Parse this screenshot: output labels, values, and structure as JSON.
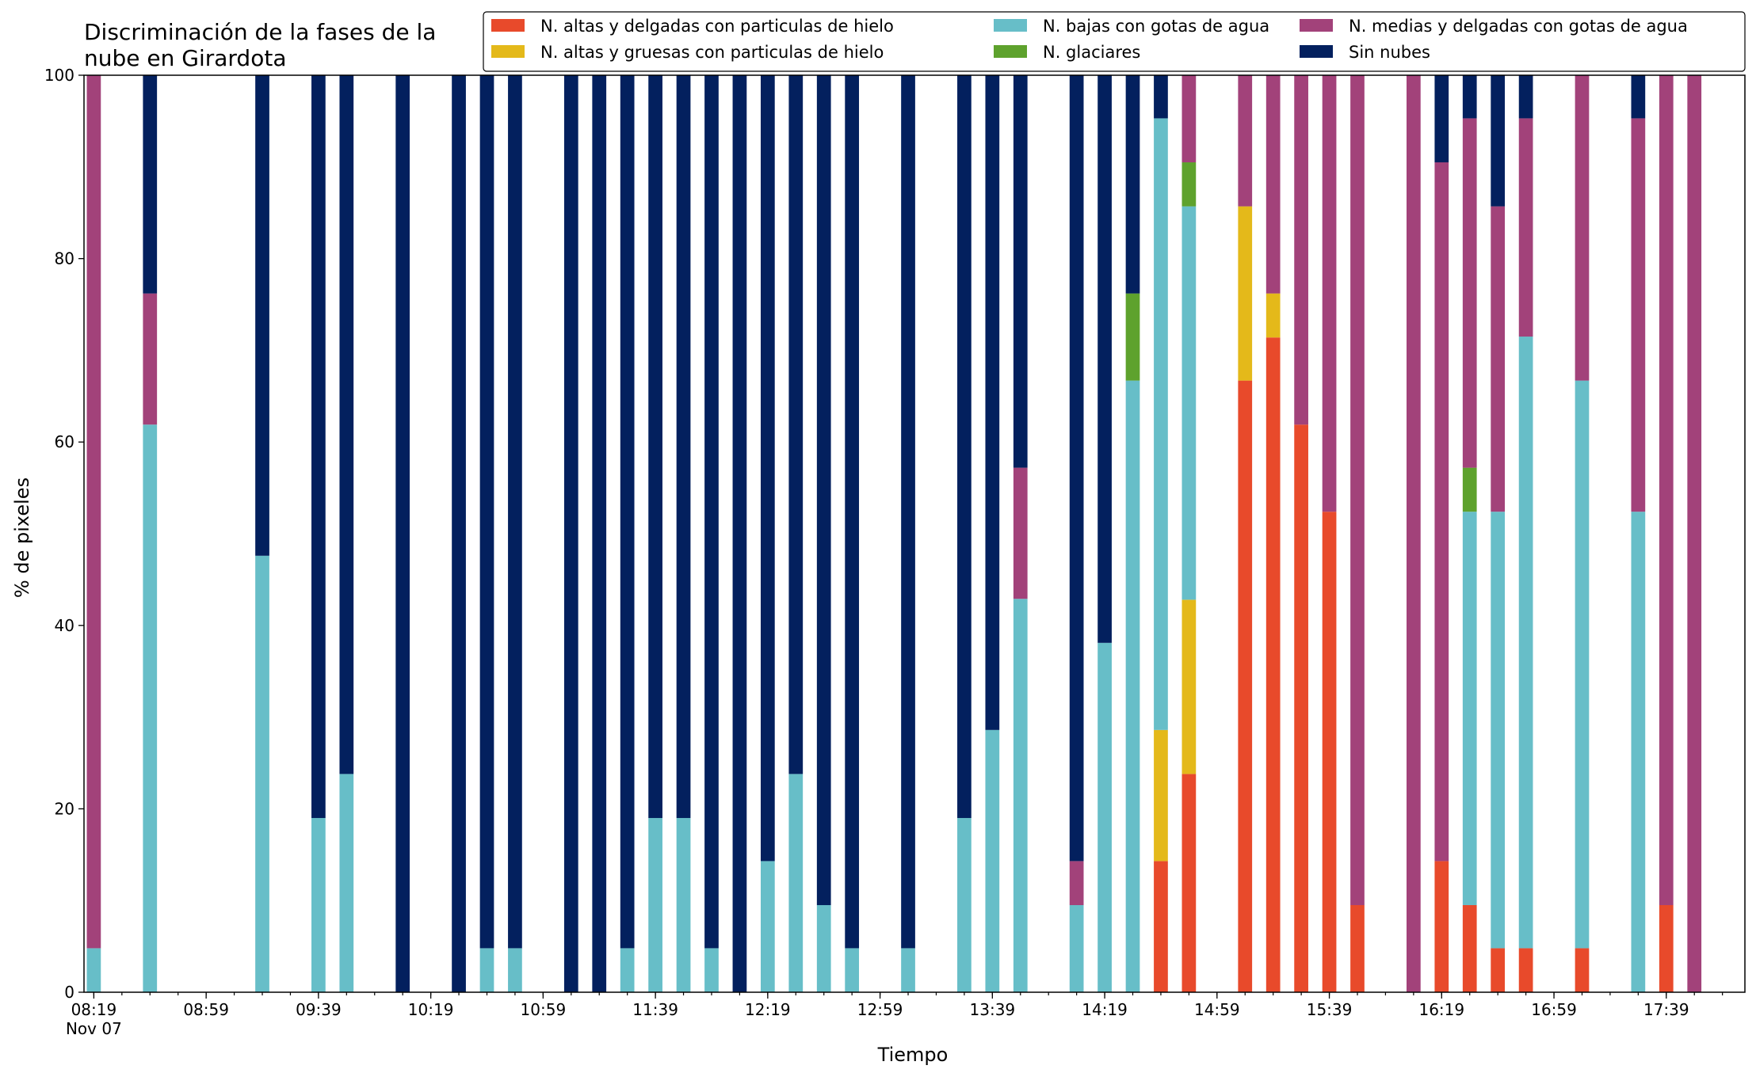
{
  "chart_data": {
    "type": "bar",
    "stacked": true,
    "title_lines": [
      "Discriminación de la fases de la",
      "nube en Girardota"
    ],
    "xlabel": "Tiempo",
    "ylabel": "% de pixeles",
    "ylim": [
      0,
      100
    ],
    "yticks": [
      0,
      20,
      40,
      60,
      80,
      100
    ],
    "xlim_minutes_since_0800": [
      15.5,
      607
    ],
    "x_unit": "minutes since 08:00, Nov 07",
    "xticks": [
      {
        "t": 19,
        "label": "08:19",
        "sublabel": "Nov 07"
      },
      {
        "t": 59,
        "label": "08:59"
      },
      {
        "t": 99,
        "label": "09:39"
      },
      {
        "t": 139,
        "label": "10:19"
      },
      {
        "t": 179,
        "label": "10:59"
      },
      {
        "t": 219,
        "label": "11:39"
      },
      {
        "t": 259,
        "label": "12:19"
      },
      {
        "t": 299,
        "label": "12:59"
      },
      {
        "t": 339,
        "label": "13:39"
      },
      {
        "t": 379,
        "label": "14:19"
      },
      {
        "t": 419,
        "label": "14:59"
      },
      {
        "t": 459,
        "label": "15:39"
      },
      {
        "t": 499,
        "label": "16:19"
      },
      {
        "t": 539,
        "label": "16:59"
      },
      {
        "t": 579,
        "label": "17:39"
      }
    ],
    "minor_tick_every_minutes": 10,
    "grid": false,
    "legend_position": "top-right",
    "legend_ncol": 3,
    "bar_width_minutes": 5,
    "series": [
      {
        "name": "N. altas y delgadas con particulas de hielo",
        "color": "#e84a2b"
      },
      {
        "name": "N. altas y gruesas con particulas de hielo",
        "color": "#e4b91a"
      },
      {
        "name": "N. bajas con gotas de agua",
        "color": "#67bec8"
      },
      {
        "name": "N. glaciares",
        "color": "#5ea22d"
      },
      {
        "name": "N. medias y delgadas con gotas de agua",
        "color": "#a2427a"
      },
      {
        "name": "Sin nubes",
        "color": "#03205e"
      }
    ],
    "bars": [
      {
        "t": 19,
        "values": [
          0,
          0,
          4.8,
          0,
          95.2,
          0
        ]
      },
      {
        "t": 39,
        "values": [
          0,
          0,
          61.9,
          0,
          14.3,
          23.8
        ]
      },
      {
        "t": 79,
        "values": [
          0,
          0,
          47.6,
          0,
          0,
          52.4
        ]
      },
      {
        "t": 99,
        "values": [
          0,
          0,
          19.0,
          0,
          0,
          81.0
        ]
      },
      {
        "t": 109,
        "values": [
          0,
          0,
          23.8,
          0,
          0,
          76.2
        ]
      },
      {
        "t": 129,
        "values": [
          0,
          0,
          0,
          0,
          0,
          100
        ]
      },
      {
        "t": 149,
        "values": [
          0,
          0,
          0,
          0,
          0,
          100
        ]
      },
      {
        "t": 159,
        "values": [
          0,
          0,
          4.8,
          0,
          0,
          95.2
        ]
      },
      {
        "t": 169,
        "values": [
          0,
          0,
          4.8,
          0,
          0,
          95.2
        ]
      },
      {
        "t": 189,
        "values": [
          0,
          0,
          0,
          0,
          0,
          100
        ]
      },
      {
        "t": 199,
        "values": [
          0,
          0,
          0,
          0,
          0,
          100
        ]
      },
      {
        "t": 209,
        "values": [
          0,
          0,
          4.8,
          0,
          0,
          95.2
        ]
      },
      {
        "t": 219,
        "values": [
          0,
          0,
          19.0,
          0,
          0,
          81.0
        ]
      },
      {
        "t": 229,
        "values": [
          0,
          0,
          19.0,
          0,
          0,
          81.0
        ]
      },
      {
        "t": 239,
        "values": [
          0,
          0,
          4.8,
          0,
          0,
          95.2
        ]
      },
      {
        "t": 249,
        "values": [
          0,
          0,
          0,
          0,
          0,
          100
        ]
      },
      {
        "t": 259,
        "values": [
          0,
          0,
          14.3,
          0,
          0,
          85.7
        ]
      },
      {
        "t": 269,
        "values": [
          0,
          0,
          23.8,
          0,
          0,
          76.2
        ]
      },
      {
        "t": 279,
        "values": [
          0,
          0,
          9.5,
          0,
          0,
          90.5
        ]
      },
      {
        "t": 289,
        "values": [
          0,
          0,
          4.8,
          0,
          0,
          95.2
        ]
      },
      {
        "t": 309,
        "values": [
          0,
          0,
          4.8,
          0,
          0,
          95.2
        ]
      },
      {
        "t": 329,
        "values": [
          0,
          0,
          19.0,
          0,
          0,
          81.0
        ]
      },
      {
        "t": 339,
        "values": [
          0,
          0,
          28.6,
          0,
          0,
          71.4
        ]
      },
      {
        "t": 349,
        "values": [
          0,
          0,
          42.9,
          0,
          14.3,
          42.8
        ]
      },
      {
        "t": 369,
        "values": [
          0,
          0,
          9.5,
          0,
          4.8,
          85.7
        ]
      },
      {
        "t": 379,
        "values": [
          0,
          0,
          38.1,
          0,
          0,
          61.9
        ]
      },
      {
        "t": 389,
        "values": [
          0,
          0,
          66.7,
          9.5,
          0,
          23.8
        ]
      },
      {
        "t": 399,
        "values": [
          14.3,
          14.3,
          66.7,
          0,
          0,
          4.7
        ]
      },
      {
        "t": 409,
        "values": [
          23.8,
          19.0,
          42.9,
          4.8,
          9.5,
          0
        ]
      },
      {
        "t": 429,
        "values": [
          66.7,
          19.0,
          0,
          0,
          14.3,
          0
        ]
      },
      {
        "t": 439,
        "values": [
          71.4,
          4.8,
          0,
          0,
          23.8,
          0
        ]
      },
      {
        "t": 449,
        "values": [
          61.9,
          0,
          0,
          0,
          38.1,
          0
        ]
      },
      {
        "t": 459,
        "values": [
          52.4,
          0,
          0,
          0,
          47.6,
          0
        ]
      },
      {
        "t": 469,
        "values": [
          9.5,
          0,
          0,
          0,
          90.5,
          0
        ]
      },
      {
        "t": 489,
        "values": [
          0,
          0,
          0,
          0,
          100,
          0
        ]
      },
      {
        "t": 499,
        "values": [
          14.3,
          0,
          0,
          0,
          76.2,
          9.5
        ]
      },
      {
        "t": 509,
        "values": [
          9.5,
          0,
          42.9,
          4.8,
          38.1,
          4.7
        ]
      },
      {
        "t": 519,
        "values": [
          4.8,
          0,
          47.6,
          0,
          33.3,
          14.3
        ]
      },
      {
        "t": 529,
        "values": [
          4.8,
          0,
          66.7,
          0,
          23.8,
          4.7
        ]
      },
      {
        "t": 549,
        "values": [
          4.8,
          0,
          61.9,
          0,
          33.3,
          0
        ]
      },
      {
        "t": 569,
        "values": [
          0,
          0,
          52.4,
          0,
          42.9,
          4.7
        ]
      },
      {
        "t": 579,
        "values": [
          9.5,
          0,
          0,
          0,
          90.5,
          0
        ]
      },
      {
        "t": 589,
        "values": [
          0,
          0,
          0,
          0,
          100,
          0
        ]
      }
    ]
  }
}
